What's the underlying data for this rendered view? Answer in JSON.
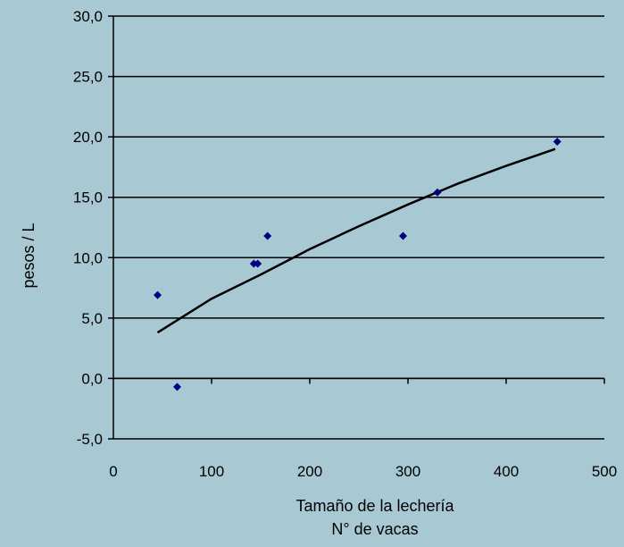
{
  "chart_data": {
    "type": "scatter",
    "title": "",
    "xlabel": "Tamaño de la lechería",
    "xlabel_line2": "N° de vacas",
    "ylabel": "pesos / L",
    "xlim": [
      0,
      500
    ],
    "ylim": [
      -5,
      30
    ],
    "x_ticks": [
      0,
      100,
      200,
      300,
      400,
      500
    ],
    "x_tick_labels": [
      "0",
      "100",
      "200",
      "300",
      "400",
      "500"
    ],
    "y_ticks": [
      -5,
      0,
      5,
      10,
      15,
      20,
      25,
      30
    ],
    "y_tick_labels": [
      "-5,0",
      "0,0",
      "5,0",
      "10,0",
      "15,0",
      "20,0",
      "25,0",
      "30,0"
    ],
    "grid": "horizontal",
    "series": [
      {
        "kind": "points",
        "color": "#000080",
        "points": [
          {
            "x": 45,
            "y": 6.9
          },
          {
            "x": 65,
            "y": -0.7
          },
          {
            "x": 143,
            "y": 9.5
          },
          {
            "x": 147,
            "y": 9.5
          },
          {
            "x": 157,
            "y": 11.8
          },
          {
            "x": 295,
            "y": 11.8
          },
          {
            "x": 330,
            "y": 15.4
          },
          {
            "x": 452,
            "y": 19.6
          }
        ]
      },
      {
        "kind": "trendline",
        "color": "#000000",
        "points": [
          {
            "x": 45,
            "y": 3.8
          },
          {
            "x": 100,
            "y": 6.6
          },
          {
            "x": 150,
            "y": 8.6
          },
          {
            "x": 200,
            "y": 10.7
          },
          {
            "x": 250,
            "y": 12.6
          },
          {
            "x": 300,
            "y": 14.4
          },
          {
            "x": 350,
            "y": 16.1
          },
          {
            "x": 400,
            "y": 17.6
          },
          {
            "x": 450,
            "y": 19.0
          }
        ]
      }
    ],
    "colors": {
      "background": "#a8c8d4",
      "marker": "#000080",
      "trendline": "#000000",
      "grid": "#000000"
    }
  }
}
